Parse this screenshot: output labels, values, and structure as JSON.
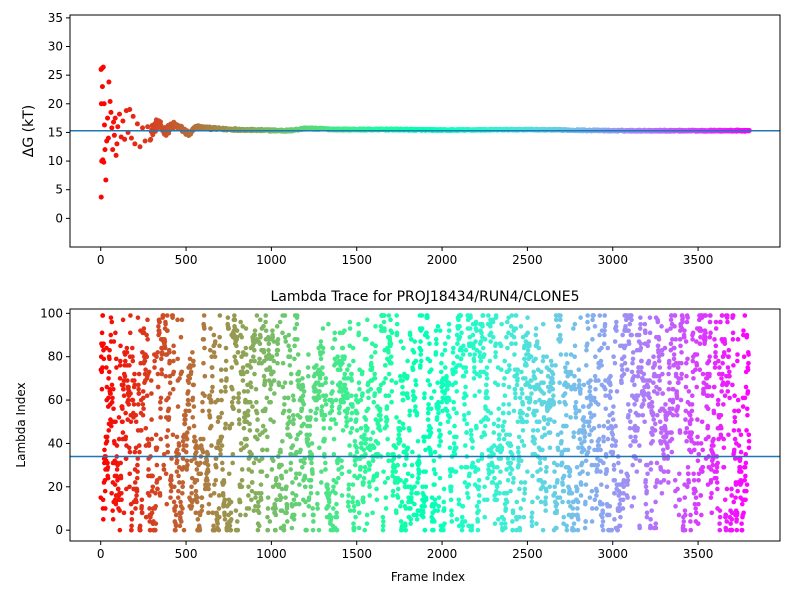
{
  "chart_data": [
    {
      "type": "scatter",
      "title": "",
      "xlabel": "",
      "ylabel": "ΔG (kT)",
      "xlim": [
        -180,
        3980
      ],
      "ylim": [
        -5,
        35.5
      ],
      "x_ticks": [
        0,
        500,
        1000,
        1500,
        2000,
        2500,
        3000,
        3500
      ],
      "y_ticks": [
        0,
        5,
        10,
        15,
        20,
        25,
        30,
        35
      ],
      "hline": 15.3,
      "hline_color": "#1f77b4",
      "colormap": "rainbow",
      "frame_range": [
        0,
        3800
      ],
      "early_points": [
        {
          "x": 2,
          "y": 26.0
        },
        {
          "x": 8,
          "y": 26.2
        },
        {
          "x": 4,
          "y": 20.0
        },
        {
          "x": 10,
          "y": 23.0
        },
        {
          "x": 15,
          "y": 26.4
        },
        {
          "x": 20,
          "y": 20.0
        },
        {
          "x": 6,
          "y": 10.0
        },
        {
          "x": 12,
          "y": 10.2
        },
        {
          "x": 18,
          "y": 9.8
        },
        {
          "x": 25,
          "y": 12.0
        },
        {
          "x": 30,
          "y": 6.7
        },
        {
          "x": 3,
          "y": 3.7
        },
        {
          "x": 22,
          "y": 16.3
        },
        {
          "x": 35,
          "y": 13.5
        },
        {
          "x": 40,
          "y": 17.5
        },
        {
          "x": 45,
          "y": 14.0
        },
        {
          "x": 48,
          "y": 23.8
        },
        {
          "x": 55,
          "y": 20.4
        },
        {
          "x": 60,
          "y": 18.5
        },
        {
          "x": 65,
          "y": 15.8
        },
        {
          "x": 70,
          "y": 12.0
        },
        {
          "x": 75,
          "y": 16.8
        },
        {
          "x": 80,
          "y": 14.5
        },
        {
          "x": 85,
          "y": 17.5
        },
        {
          "x": 90,
          "y": 11.0
        },
        {
          "x": 95,
          "y": 13.0
        },
        {
          "x": 100,
          "y": 16.0
        },
        {
          "x": 110,
          "y": 18.2
        },
        {
          "x": 120,
          "y": 14.2
        },
        {
          "x": 130,
          "y": 17.0
        },
        {
          "x": 140,
          "y": 13.8
        },
        {
          "x": 150,
          "y": 18.8
        },
        {
          "x": 160,
          "y": 15.0
        },
        {
          "x": 170,
          "y": 19.0
        },
        {
          "x": 180,
          "y": 14.0
        },
        {
          "x": 190,
          "y": 17.8
        },
        {
          "x": 200,
          "y": 13.0
        },
        {
          "x": 215,
          "y": 16.5
        },
        {
          "x": 230,
          "y": 12.5
        },
        {
          "x": 245,
          "y": 15.8
        },
        {
          "x": 260,
          "y": 13.5
        },
        {
          "x": 275,
          "y": 16.0
        }
      ],
      "trend": {
        "x": [
          290,
          330,
          380,
          430,
          480,
          520,
          560,
          600,
          700,
          900,
          1100,
          1200,
          1400,
          1700,
          2000,
          2500,
          3000,
          3500,
          3800
        ],
        "y": [
          14.8,
          16.5,
          15.2,
          16.3,
          15.5,
          14.6,
          16.0,
          15.8,
          15.6,
          15.4,
          15.3,
          15.7,
          15.5,
          15.5,
          15.4,
          15.5,
          15.3,
          15.3,
          15.3
        ],
        "spread": [
          1.2,
          0.9,
          0.8,
          0.6,
          0.5,
          0.5,
          0.3,
          0.25,
          0.2,
          0.15,
          0.15,
          0.15,
          0.12,
          0.12,
          0.1,
          0.1,
          0.1,
          0.1,
          0.1
        ]
      }
    },
    {
      "type": "scatter",
      "title": "Lambda Trace for PROJ18434/RUN4/CLONE5",
      "xlabel": "Frame Index",
      "ylabel": "Lambda Index",
      "xlim": [
        -180,
        3980
      ],
      "ylim": [
        -5,
        102
      ],
      "x_ticks": [
        0,
        500,
        1000,
        1500,
        2000,
        2500,
        3000,
        3500
      ],
      "y_ticks": [
        0,
        20,
        40,
        60,
        80,
        100
      ],
      "hline": 34,
      "hline_color": "#1f77b4",
      "colormap": "rainbow",
      "frame_range": [
        0,
        3800
      ],
      "lambda_range": [
        0,
        99
      ],
      "n_points": 3800,
      "distribution": "uniform random walk over lambda 0-99, one point per frame"
    }
  ]
}
